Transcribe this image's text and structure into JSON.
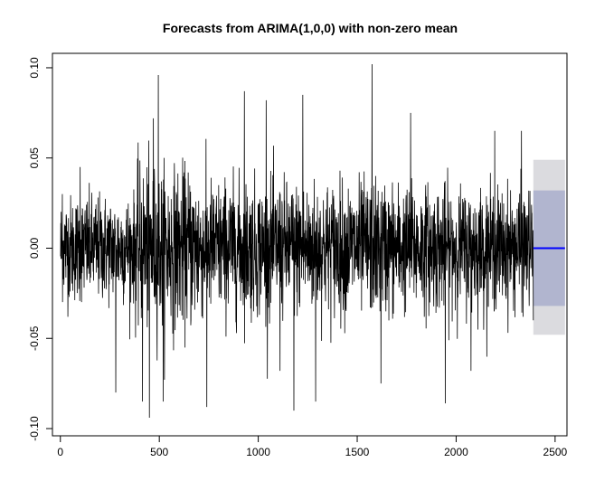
{
  "chart_data": {
    "type": "line",
    "title": "Forecasts from ARIMA(1,0,0) with non-zero mean",
    "xlabel": "",
    "ylabel": "",
    "xlim": [
      -40,
      2560
    ],
    "ylim": [
      -0.104,
      0.108
    ],
    "x_ticks": [
      0,
      500,
      1000,
      1500,
      2000,
      2500
    ],
    "x_tick_labels": [
      "0",
      "500",
      "1000",
      "1500",
      "2000",
      "2500"
    ],
    "y_ticks": [
      -0.1,
      -0.05,
      0.0,
      0.05,
      0.1
    ],
    "y_tick_labels": [
      "-0.10",
      "-0.05",
      "0.00",
      "0.05",
      "0.10"
    ],
    "grid": false,
    "legend": "none",
    "observed_series": {
      "color": "#000000",
      "n_points": 2390,
      "x_start": 1,
      "mean": 0.0,
      "approx_range": [
        -0.094,
        0.102
      ],
      "notable_extremes": [
        {
          "x": 10,
          "y": 0.03
        },
        {
          "x": 100,
          "y": 0.045
        },
        {
          "x": 280,
          "y": -0.08
        },
        {
          "x": 415,
          "y": -0.085
        },
        {
          "x": 450,
          "y": -0.094
        },
        {
          "x": 470,
          "y": 0.072
        },
        {
          "x": 495,
          "y": 0.096
        },
        {
          "x": 520,
          "y": -0.085
        },
        {
          "x": 740,
          "y": -0.088
        },
        {
          "x": 930,
          "y": 0.087
        },
        {
          "x": 1040,
          "y": 0.082
        },
        {
          "x": 1110,
          "y": -0.068
        },
        {
          "x": 1180,
          "y": -0.09
        },
        {
          "x": 1225,
          "y": 0.085
        },
        {
          "x": 1290,
          "y": -0.085
        },
        {
          "x": 1575,
          "y": 0.102
        },
        {
          "x": 1620,
          "y": -0.075
        },
        {
          "x": 1770,
          "y": 0.075
        },
        {
          "x": 1945,
          "y": -0.086
        },
        {
          "x": 2075,
          "y": -0.068
        },
        {
          "x": 2195,
          "y": 0.065
        },
        {
          "x": 2330,
          "y": 0.065
        },
        {
          "x": 2390,
          "y": -0.04
        }
      ]
    },
    "forecast": {
      "x_start": 2390,
      "x_end": 2550,
      "point_forecast": 0.0,
      "line_color": "#0000ff",
      "interval_80": {
        "lower": -0.032,
        "upper": 0.032,
        "color": "#b1b5cf"
      },
      "interval_95": {
        "lower": -0.048,
        "upper": 0.049,
        "color": "#dbdbdf"
      }
    }
  }
}
